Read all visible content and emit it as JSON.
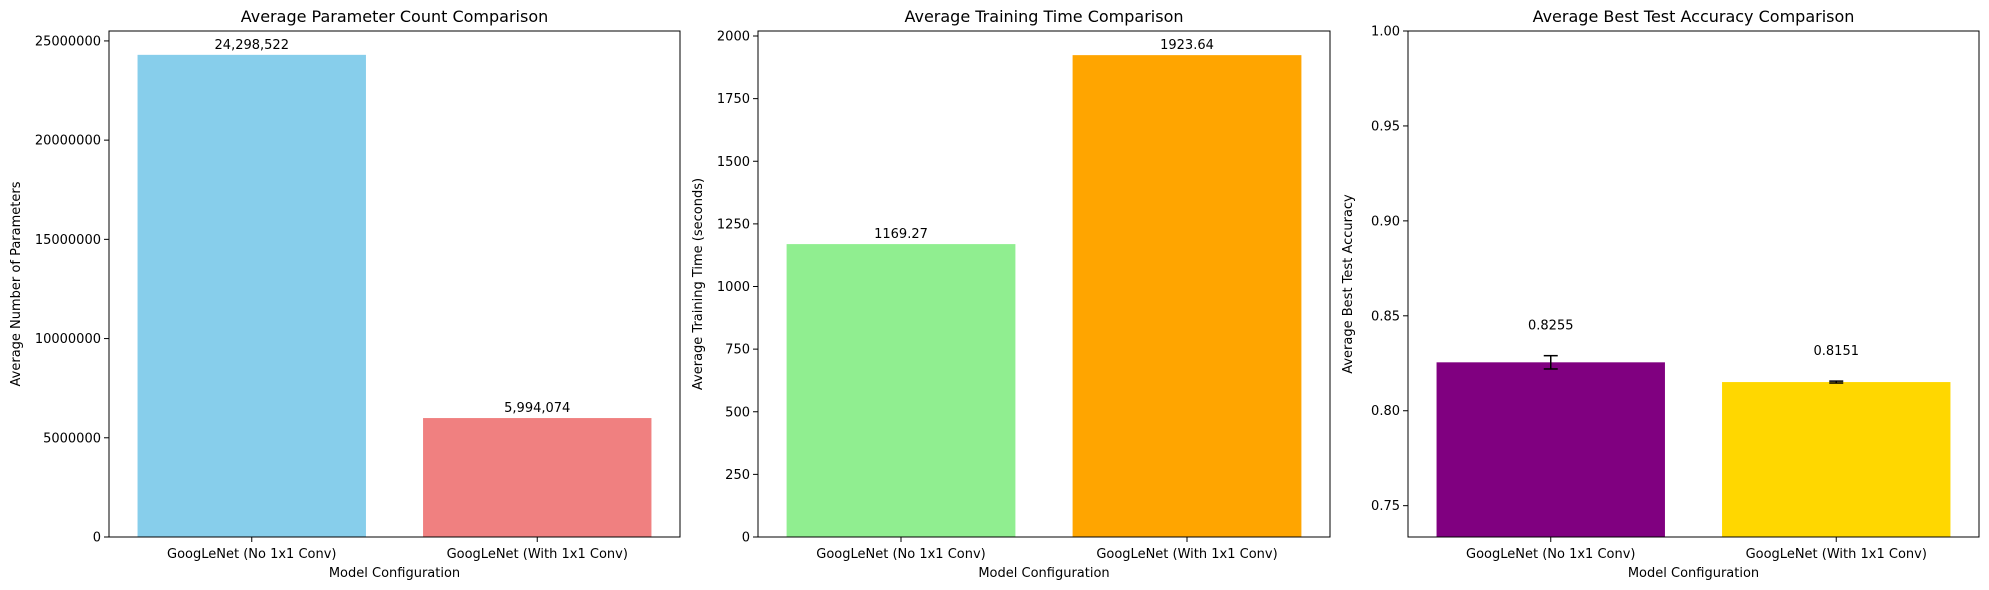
{
  "chart_data": [
    {
      "type": "bar",
      "title": "Average Parameter Count Comparison",
      "xlabel": "Model Configuration",
      "ylabel": "Average Number of Parameters",
      "categories": [
        "GoogLeNet (No 1x1 Conv)",
        "GoogLeNet (With 1x1 Conv)"
      ],
      "values": [
        24298522,
        5994074
      ],
      "value_labels": [
        "24,298,522",
        "5,994,074"
      ],
      "colors": [
        "#87ceeb",
        "#f08080"
      ],
      "ylim": [
        0,
        25500000
      ],
      "yticks": [
        0,
        5000000,
        10000000,
        15000000,
        20000000,
        25000000
      ],
      "ytick_labels": [
        "0",
        "5000000",
        "10000000",
        "15000000",
        "20000000",
        "25000000"
      ],
      "grid": false
    },
    {
      "type": "bar",
      "title": "Average Training Time Comparison",
      "xlabel": "Model Configuration",
      "ylabel": "Average Training Time (seconds)",
      "categories": [
        "GoogLeNet (No 1x1 Conv)",
        "GoogLeNet (With 1x1 Conv)"
      ],
      "values": [
        1169.27,
        1923.64
      ],
      "value_labels": [
        "1169.27",
        "1923.64"
      ],
      "colors": [
        "#90ee90",
        "#ffa500"
      ],
      "ylim": [
        0,
        2020
      ],
      "yticks": [
        0,
        250,
        500,
        750,
        1000,
        1250,
        1500,
        1750,
        2000
      ],
      "ytick_labels": [
        "0",
        "250",
        "500",
        "750",
        "1000",
        "1250",
        "1500",
        "1750",
        "2000"
      ],
      "grid": false
    },
    {
      "type": "bar",
      "title": "Average Best Test Accuracy Comparison",
      "xlabel": "Model Configuration",
      "ylabel": "Average Best Test Accuracy",
      "categories": [
        "GoogLeNet (No 1x1 Conv)",
        "GoogLeNet (With 1x1 Conv)"
      ],
      "values": [
        0.8255,
        0.8151
      ],
      "value_labels": [
        "0.8255",
        "0.8151"
      ],
      "errors": [
        0.0035,
        0.0005
      ],
      "colors": [
        "#800080",
        "#ffd700"
      ],
      "ylim": [
        0.7335,
        1.0
      ],
      "yticks": [
        0.75,
        0.8,
        0.85,
        0.9,
        0.95,
        1.0
      ],
      "ytick_labels": [
        "0.75",
        "0.80",
        "0.85",
        "0.90",
        "0.95",
        "1.00"
      ],
      "grid": false
    }
  ]
}
